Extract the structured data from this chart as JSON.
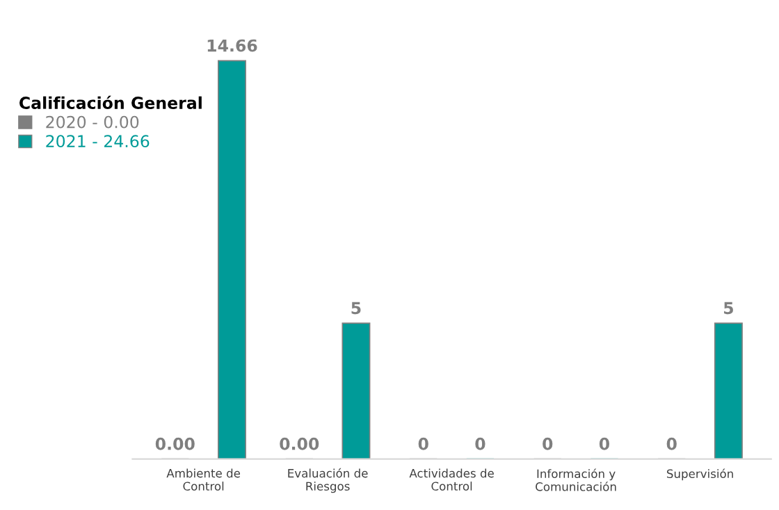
{
  "chart_data": {
    "type": "bar",
    "legend_title": "Calificación General",
    "legend": "top left",
    "tick_labels": "x",
    "grid": false,
    "categories": [
      "Ambiente de\nControl",
      "Evaluación de\nRiesgos",
      "Actividades de\nControl",
      "Información y\nComunicación",
      "Supervisión"
    ],
    "series": [
      {
        "name": "2020 - 0.00",
        "color": "#7f7f7f",
        "values": [
          0,
          0,
          0,
          0,
          0
        ],
        "value_labels": [
          "0.00",
          "0.00",
          "0",
          "0",
          "0"
        ]
      },
      {
        "name": "2021 - 24.66",
        "color": "#009b98",
        "values": [
          14.66,
          5,
          0,
          0,
          5
        ],
        "value_labels": [
          "14.66",
          "5",
          "0",
          "0",
          "5"
        ]
      }
    ]
  }
}
